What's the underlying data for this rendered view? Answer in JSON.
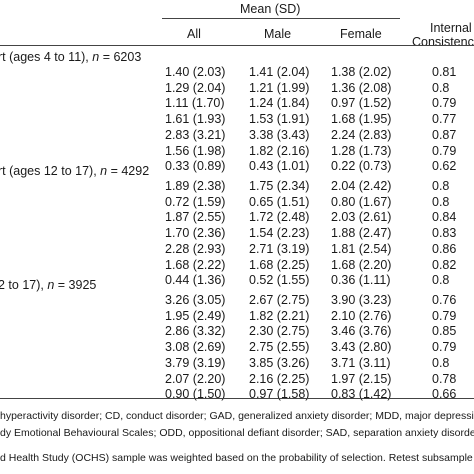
{
  "header": {
    "mean_sd": "Mean (SD)",
    "all": "All",
    "male": "Male",
    "female": "Female",
    "ic_line1": "Internal",
    "ic_line2": "Consistency"
  },
  "sections": [
    {
      "label": "rt (ages 4 to 11), n = 6203",
      "label_parts": [
        "rt (ages 4 to 11), ",
        "n",
        " = 6203"
      ],
      "rows": [
        [
          "1.40 (2.03)",
          "1.41 (2.04)",
          "1.38 (2.02)",
          "0.81"
        ],
        [
          "1.29 (2.04)",
          "1.21 (1.99)",
          "1.36 (2.08)",
          "0.8"
        ],
        [
          "1.11 (1.70)",
          "1.24 (1.84)",
          "0.97 (1.52)",
          "0.79"
        ],
        [
          "1.61 (1.93)",
          "1.53 (1.91)",
          "1.68 (1.95)",
          "0.77"
        ],
        [
          "2.83 (3.21)",
          "3.38 (3.43)",
          "2.24 (2.83)",
          "0.87"
        ],
        [
          "1.56 (1.98)",
          "1.82 (2.16)",
          "1.28 (1.73)",
          "0.79"
        ],
        [
          "0.33 (0.89)",
          "0.43 (1.01)",
          "0.22 (0.73)",
          "0.62"
        ]
      ]
    },
    {
      "label": "rt (ages 12 to 17), n = 4292",
      "label_parts": [
        "rt (ages 12 to 17), ",
        "n",
        " = 4292"
      ],
      "rows": [
        [
          "1.89 (2.38)",
          "1.75 (2.34)",
          "2.04 (2.42)",
          "0.8"
        ],
        [
          "0.72 (1.59)",
          "0.65 (1.51)",
          "0.80 (1.67)",
          "0.8"
        ],
        [
          "1.87 (2.55)",
          "1.72 (2.48)",
          "2.03 (2.61)",
          "0.84"
        ],
        [
          "1.70 (2.36)",
          "1.54 (2.23)",
          "1.88 (2.47)",
          "0.83"
        ],
        [
          "2.28 (2.93)",
          "2.71 (3.19)",
          "1.81 (2.54)",
          "0.86"
        ],
        [
          "1.68 (2.22)",
          "1.68 (2.25)",
          "1.68 (2.20)",
          "0.82"
        ],
        [
          "0.44 (1.36)",
          "0.52 (1.55)",
          "0.36 (1.11)",
          "0.8"
        ]
      ]
    },
    {
      "label": "2 to 17), n = 3925",
      "label_parts": [
        "2 to 17), ",
        "n",
        " = 3925"
      ],
      "rows": [
        [
          "3.26 (3.05)",
          "2.67 (2.75)",
          "3.90 (3.23)",
          "0.76"
        ],
        [
          "1.95 (2.49)",
          "1.82 (2.21)",
          "2.10 (2.76)",
          "0.79"
        ],
        [
          "2.86 (3.32)",
          "2.30 (2.75)",
          "3.46 (3.76)",
          "0.85"
        ],
        [
          "3.08 (2.69)",
          "2.75 (2.55)",
          "3.43 (2.80)",
          "0.79"
        ],
        [
          "3.79 (3.19)",
          "3.85 (3.26)",
          "3.71 (3.11)",
          "0.8"
        ],
        [
          "2.07 (2.20)",
          "2.16 (2.25)",
          "1.97 (2.15)",
          "0.78"
        ],
        [
          "0.90 (1.50)",
          "0.97 (1.58)",
          "0.83 (1.42)",
          "0.66"
        ]
      ]
    }
  ],
  "notes": {
    "line1": "hyperactivity disorder; CD, conduct disorder; GAD, generalized anxiety disorder; MDD, major depressi",
    "line2": "dy Emotional Behavioural Scales; ODD, oppositional defiant disorder; SAD, separation anxiety disorder; S",
    "line3": "d Health Study (OCHS) sample was weighted based on the probability of selection. Retest subsample wa"
  }
}
